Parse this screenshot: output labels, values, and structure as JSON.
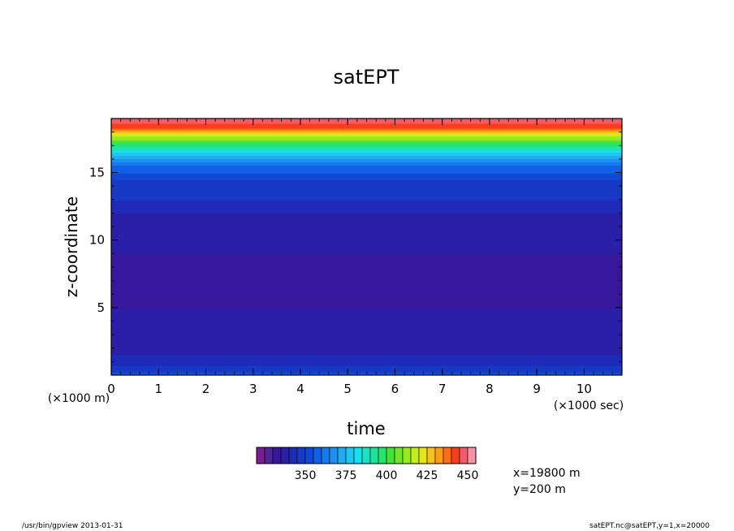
{
  "chart_data": {
    "type": "heatmap",
    "title": "satEPT",
    "xlabel": "time",
    "ylabel": "z-coordinate",
    "x_unit_left": "(×1000 m)",
    "x_unit_right": "(×1000 sec)",
    "xlim": [
      0,
      10.8
    ],
    "ylim": [
      0,
      19
    ],
    "x_ticks": [
      0,
      1,
      2,
      3,
      4,
      5,
      6,
      7,
      8,
      9,
      10
    ],
    "y_ticks": [
      5,
      10,
      15
    ],
    "colorbar": {
      "min": 320,
      "step": 5,
      "count": 27,
      "tick_values": [
        350,
        375,
        400,
        425,
        450
      ],
      "colors": [
        "#7a1d8f",
        "#4e2597",
        "#37179b",
        "#2a1fa8",
        "#1f2ab7",
        "#1739c5",
        "#1148d6",
        "#1260e6",
        "#1878ee",
        "#1e90ef",
        "#22acf0",
        "#1ec8f2",
        "#19e0ee",
        "#19e3c4",
        "#1fe39a",
        "#28e36d",
        "#42e43a",
        "#6fe62a",
        "#9aea22",
        "#c2ee1d",
        "#e6e51a",
        "#f7c418",
        "#fb9e16",
        "#fd6d16",
        "#fd3c18",
        "#f35a6a",
        "#f694a7"
      ]
    },
    "vertical_profile": [
      {
        "z": 0.1,
        "value": 355
      },
      {
        "z": 0.3,
        "value": 349
      },
      {
        "z": 0.7,
        "value": 345
      },
      {
        "z": 1.5,
        "value": 340
      },
      {
        "z": 3,
        "value": 337
      },
      {
        "z": 6,
        "value": 334
      },
      {
        "z": 9,
        "value": 335
      },
      {
        "z": 12,
        "value": 340
      },
      {
        "z": 13,
        "value": 345
      },
      {
        "z": 14.5,
        "value": 350
      },
      {
        "z": 15.5,
        "value": 360
      },
      {
        "z": 16.5,
        "value": 380
      },
      {
        "z": 17.2,
        "value": 400
      },
      {
        "z": 17.8,
        "value": 420
      },
      {
        "z": 18.3,
        "value": 440
      },
      {
        "z": 18.8,
        "value": 448
      },
      {
        "z": 19,
        "value": 450
      }
    ],
    "annotations": {
      "x_position": "x=19800 m",
      "y_position": "y=200 m"
    }
  },
  "footer": {
    "left": "/usr/bin/gpview  2013-01-31",
    "right": "satEPT.nc@satEPT,y=1,x=20000"
  }
}
